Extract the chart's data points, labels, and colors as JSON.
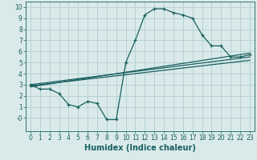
{
  "xlabel": "Humidex (Indice chaleur)",
  "bg_color": "#daeaea",
  "grid_color": "#b0cfcf",
  "line_color": "#1a5f5f",
  "xlim": [
    -0.5,
    23.5
  ],
  "ylim": [
    -1.2,
    10.5
  ],
  "xtick_labels": [
    "0",
    "1",
    "2",
    "3",
    "4",
    "5",
    "6",
    "7",
    "8",
    "9",
    "10",
    "11",
    "12",
    "13",
    "14",
    "15",
    "16",
    "17",
    "18",
    "19",
    "20",
    "21",
    "22",
    "23"
  ],
  "xtick_vals": [
    0,
    1,
    2,
    3,
    4,
    5,
    6,
    7,
    8,
    9,
    10,
    11,
    12,
    13,
    14,
    15,
    16,
    17,
    18,
    19,
    20,
    21,
    22,
    23
  ],
  "ytick_vals": [
    0,
    1,
    2,
    3,
    4,
    5,
    6,
    7,
    8,
    9,
    10
  ],
  "ytick_labels": [
    "-0",
    "1",
    "2",
    "3",
    "4",
    "5",
    "6",
    "7",
    "8",
    "9",
    "10"
  ],
  "curve1_x": [
    0,
    1,
    2,
    3,
    4,
    5,
    6,
    7,
    8,
    9,
    10,
    11,
    12,
    13,
    14,
    15,
    16,
    17,
    18,
    19,
    20,
    21,
    22,
    23
  ],
  "curve1_y": [
    3.0,
    2.6,
    2.6,
    2.2,
    1.2,
    1.0,
    1.5,
    1.3,
    -0.15,
    -0.15,
    5.0,
    7.0,
    9.3,
    9.85,
    9.85,
    9.5,
    9.3,
    9.0,
    7.5,
    6.5,
    6.5,
    5.5,
    5.5,
    5.7
  ],
  "curve2_x": [
    0,
    23
  ],
  "curve2_y": [
    3.0,
    5.5
  ],
  "curve3_x": [
    0,
    23
  ],
  "curve3_y": [
    2.9,
    5.2
  ],
  "curve4_x": [
    0,
    23
  ],
  "curve4_y": [
    2.8,
    5.85
  ],
  "xlabel_fontsize": 7,
  "tick_fontsize": 5.5
}
